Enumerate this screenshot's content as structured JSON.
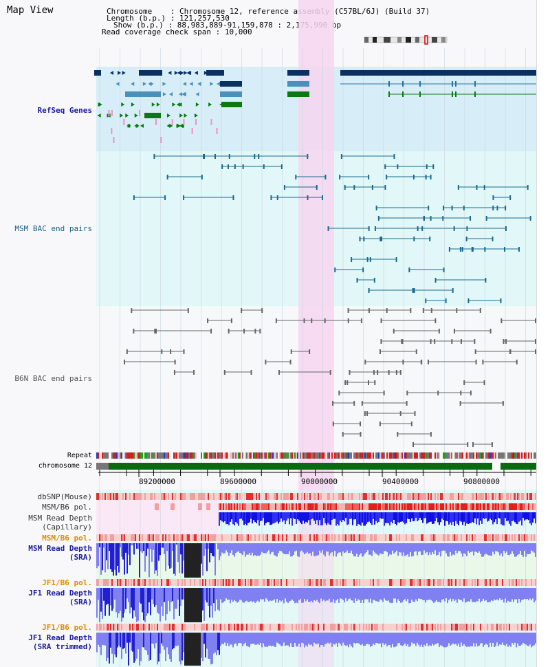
{
  "page": {
    "title": "Map View",
    "header": {
      "chromosome_key": "Chromosome",
      "chromosome_value": "Chromosome 12, reference assembly (C57BL/6J) (Build 37)",
      "length_key": "Length (b.p.)",
      "length_value": "121,257,530",
      "show_key": "Show (b.p.)",
      "show_value": "88,983,889-91,159,878 : 2,175,990 bp",
      "coverage_key": "Read coverage check span",
      "coverage_value": "10,000"
    }
  },
  "tracks": {
    "refseq": {
      "label": "RefSeq Genes",
      "color": "#1a1aa0"
    },
    "msm_bac": {
      "label": "MSM BAC end pairs",
      "color": "#1a6080"
    },
    "b6n_bac": {
      "label": "B6N BAC end pairs",
      "color": "#555555"
    },
    "repeat": {
      "label": "Repeat",
      "color": "#000000"
    },
    "chromosome": {
      "label": "chromosome 12",
      "color": "#000000"
    },
    "dbsnp": {
      "label": "dbSNP(Mouse)",
      "color": "#333333"
    },
    "msm_b6_pol_1": {
      "label": "MSM/B6 pol.",
      "color": "#333333"
    },
    "msm_read_cap": {
      "label1": "MSM Read Depth",
      "label2": "(Capillary)",
      "color": "#333333"
    },
    "msm_b6_pol_2": {
      "label": "MSM/B6 pol.",
      "color": "#e08a00"
    },
    "msm_read_sra": {
      "label1": "MSM Read Depth",
      "label2": "(SRA)",
      "color": "#1a1aa0"
    },
    "jf1_b6_pol_1": {
      "label": "JF1/B6 pol.",
      "color": "#e08a00"
    },
    "jf1_read_sra": {
      "label1": "JF1 Read Depth",
      "label2": "(SRA)",
      "color": "#1a1aa0"
    },
    "jf1_b6_pol_2": {
      "label": "JF1/B6 pol.",
      "color": "#e08a00"
    },
    "jf1_read_trim": {
      "label1": "JF1 Read Depth",
      "label2": "(SRA trimmed)",
      "color": "#1a1aa0"
    }
  },
  "axis": {
    "ticks": [
      "89200000",
      "89600000",
      "90000000",
      "90400000",
      "90800000"
    ]
  },
  "colors": {
    "highlight": "#f6d6f0",
    "refseq_bg": "#d7eef8",
    "bac_bg": "#e2f7f7",
    "gene_dark": "#0a3060",
    "gene_mid": "#4a90b8",
    "gene_green": "#0a7a10",
    "gene_pink": "#f090c0"
  }
}
